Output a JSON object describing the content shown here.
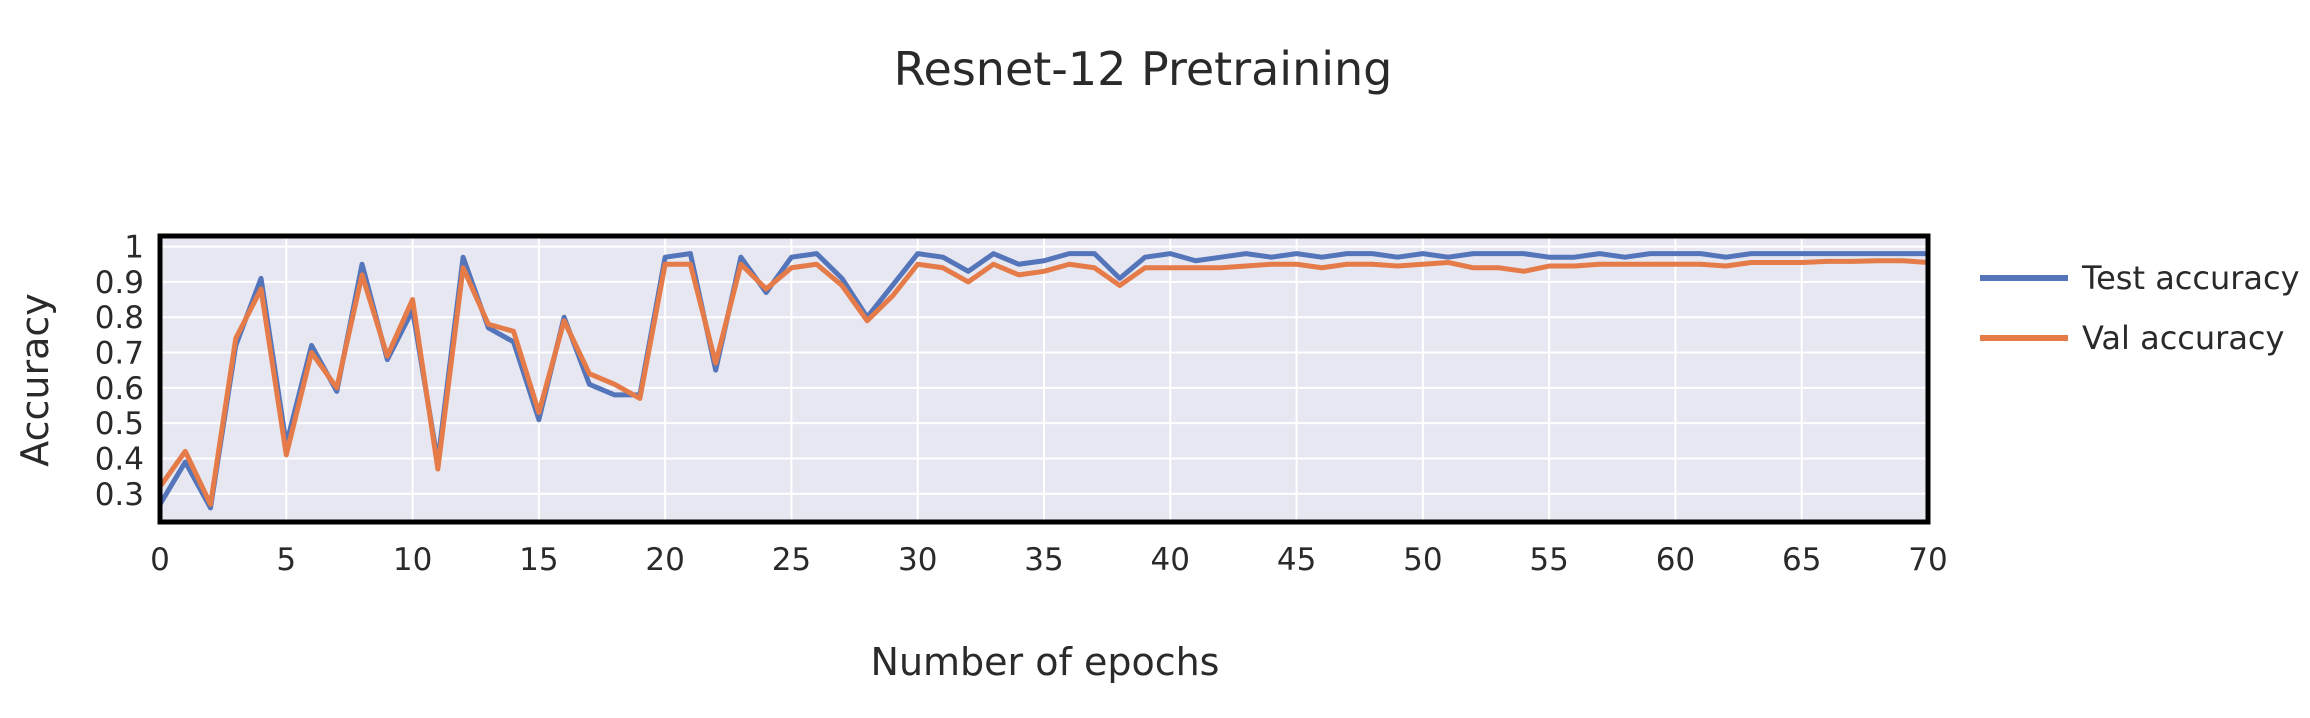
{
  "chart_data": {
    "type": "line",
    "title": "Resnet-12 Pretraining",
    "xlabel": "Number of epochs",
    "ylabel": "Accuracy",
    "xlim": [
      0,
      70
    ],
    "ylim": [
      0.22,
      1.03
    ],
    "x_ticks": [
      0,
      5,
      10,
      15,
      20,
      25,
      30,
      35,
      40,
      45,
      50,
      55,
      60,
      65,
      70
    ],
    "y_ticks": [
      0.3,
      0.4,
      0.5,
      0.6,
      0.7,
      0.8,
      0.9,
      1
    ],
    "grid": true,
    "legend_position": "right",
    "plot_background": "#e6e7f1",
    "grid_color": "#ffffff",
    "frame_color": "#000000",
    "series": [
      {
        "name": "Test accuracy",
        "color": "#5475ba",
        "x": [
          0,
          1,
          2,
          3,
          4,
          5,
          6,
          7,
          8,
          9,
          10,
          11,
          12,
          13,
          14,
          15,
          16,
          17,
          18,
          19,
          20,
          21,
          22,
          23,
          24,
          25,
          26,
          27,
          28,
          29,
          30,
          31,
          32,
          33,
          34,
          35,
          36,
          37,
          38,
          39,
          40,
          41,
          42,
          43,
          44,
          45,
          46,
          47,
          48,
          49,
          50,
          51,
          52,
          53,
          54,
          55,
          56,
          57,
          58,
          59,
          60,
          61,
          62,
          63,
          64,
          65,
          66,
          67,
          68,
          69,
          70
        ],
        "values": [
          0.27,
          0.39,
          0.26,
          0.72,
          0.91,
          0.44,
          0.72,
          0.59,
          0.95,
          0.68,
          0.82,
          0.39,
          0.97,
          0.77,
          0.73,
          0.51,
          0.8,
          0.61,
          0.58,
          0.58,
          0.97,
          0.98,
          0.65,
          0.97,
          0.87,
          0.97,
          0.98,
          0.91,
          0.8,
          0.89,
          0.98,
          0.97,
          0.93,
          0.98,
          0.95,
          0.96,
          0.98,
          0.98,
          0.91,
          0.97,
          0.98,
          0.96,
          0.97,
          0.98,
          0.97,
          0.98,
          0.97,
          0.98,
          0.98,
          0.97,
          0.98,
          0.97,
          0.98,
          0.98,
          0.98,
          0.97,
          0.97,
          0.98,
          0.97,
          0.98,
          0.98,
          0.98,
          0.97,
          0.98,
          0.98,
          0.98,
          0.98,
          0.98,
          0.98,
          0.98,
          0.98
        ]
      },
      {
        "name": "Val accuracy",
        "color": "#e57b48",
        "x": [
          0,
          1,
          2,
          3,
          4,
          5,
          6,
          7,
          8,
          9,
          10,
          11,
          12,
          13,
          14,
          15,
          16,
          17,
          18,
          19,
          20,
          21,
          22,
          23,
          24,
          25,
          26,
          27,
          28,
          29,
          30,
          31,
          32,
          33,
          34,
          35,
          36,
          37,
          38,
          39,
          40,
          41,
          42,
          43,
          44,
          45,
          46,
          47,
          48,
          49,
          50,
          51,
          52,
          53,
          54,
          55,
          56,
          57,
          58,
          59,
          60,
          61,
          62,
          63,
          64,
          65,
          66,
          67,
          68,
          69,
          70
        ],
        "values": [
          0.32,
          0.42,
          0.27,
          0.74,
          0.88,
          0.41,
          0.7,
          0.6,
          0.92,
          0.69,
          0.85,
          0.37,
          0.94,
          0.78,
          0.76,
          0.53,
          0.79,
          0.64,
          0.61,
          0.57,
          0.95,
          0.95,
          0.67,
          0.95,
          0.88,
          0.94,
          0.95,
          0.89,
          0.79,
          0.86,
          0.95,
          0.94,
          0.9,
          0.95,
          0.92,
          0.93,
          0.95,
          0.94,
          0.89,
          0.94,
          0.94,
          0.94,
          0.94,
          0.945,
          0.95,
          0.95,
          0.94,
          0.95,
          0.95,
          0.945,
          0.95,
          0.955,
          0.94,
          0.94,
          0.93,
          0.945,
          0.945,
          0.95,
          0.95,
          0.95,
          0.95,
          0.95,
          0.945,
          0.955,
          0.955,
          0.955,
          0.958,
          0.958,
          0.96,
          0.96,
          0.955
        ]
      }
    ]
  }
}
